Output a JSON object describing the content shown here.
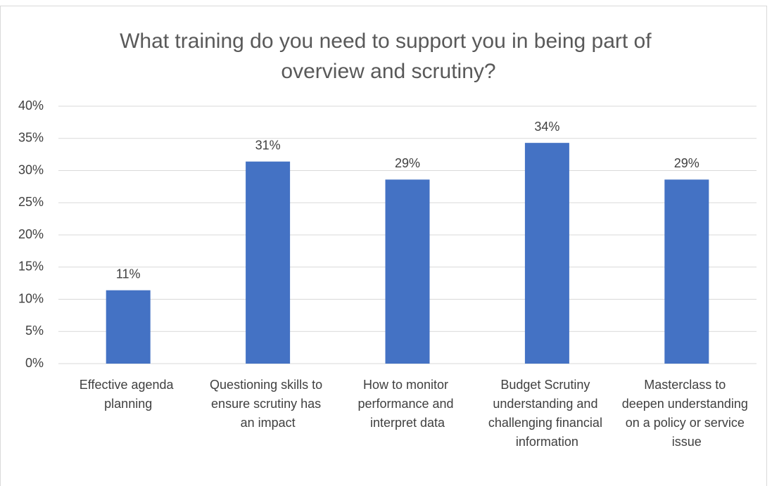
{
  "chart_data": {
    "type": "bar",
    "title": "What training do you need to support you in being part of overview and scrutiny?",
    "categories": [
      "Effective agenda planning",
      "Questioning skills to ensure scrutiny has an impact",
      "How to monitor performance and interpret data",
      "Budget Scrutiny understanding and challenging financial information",
      "Masterclass to deepen understanding on a policy or service issue"
    ],
    "values": [
      11.4,
      31.4,
      28.6,
      34.3,
      28.6
    ],
    "value_labels": [
      "11%",
      "31%",
      "29%",
      "34%",
      "29%"
    ],
    "color": "#4472c4",
    "ylim": [
      0,
      40
    ],
    "yticks": [
      {
        "value": 0,
        "label": "0%"
      },
      {
        "value": 5,
        "label": "5%"
      },
      {
        "value": 10,
        "label": "10%"
      },
      {
        "value": 15,
        "label": "15%"
      },
      {
        "value": 20,
        "label": "20%"
      },
      {
        "value": 25,
        "label": "25%"
      },
      {
        "value": 30,
        "label": "30%"
      },
      {
        "value": 35,
        "label": "35%"
      },
      {
        "value": 40,
        "label": "40%"
      }
    ],
    "grid": true
  }
}
